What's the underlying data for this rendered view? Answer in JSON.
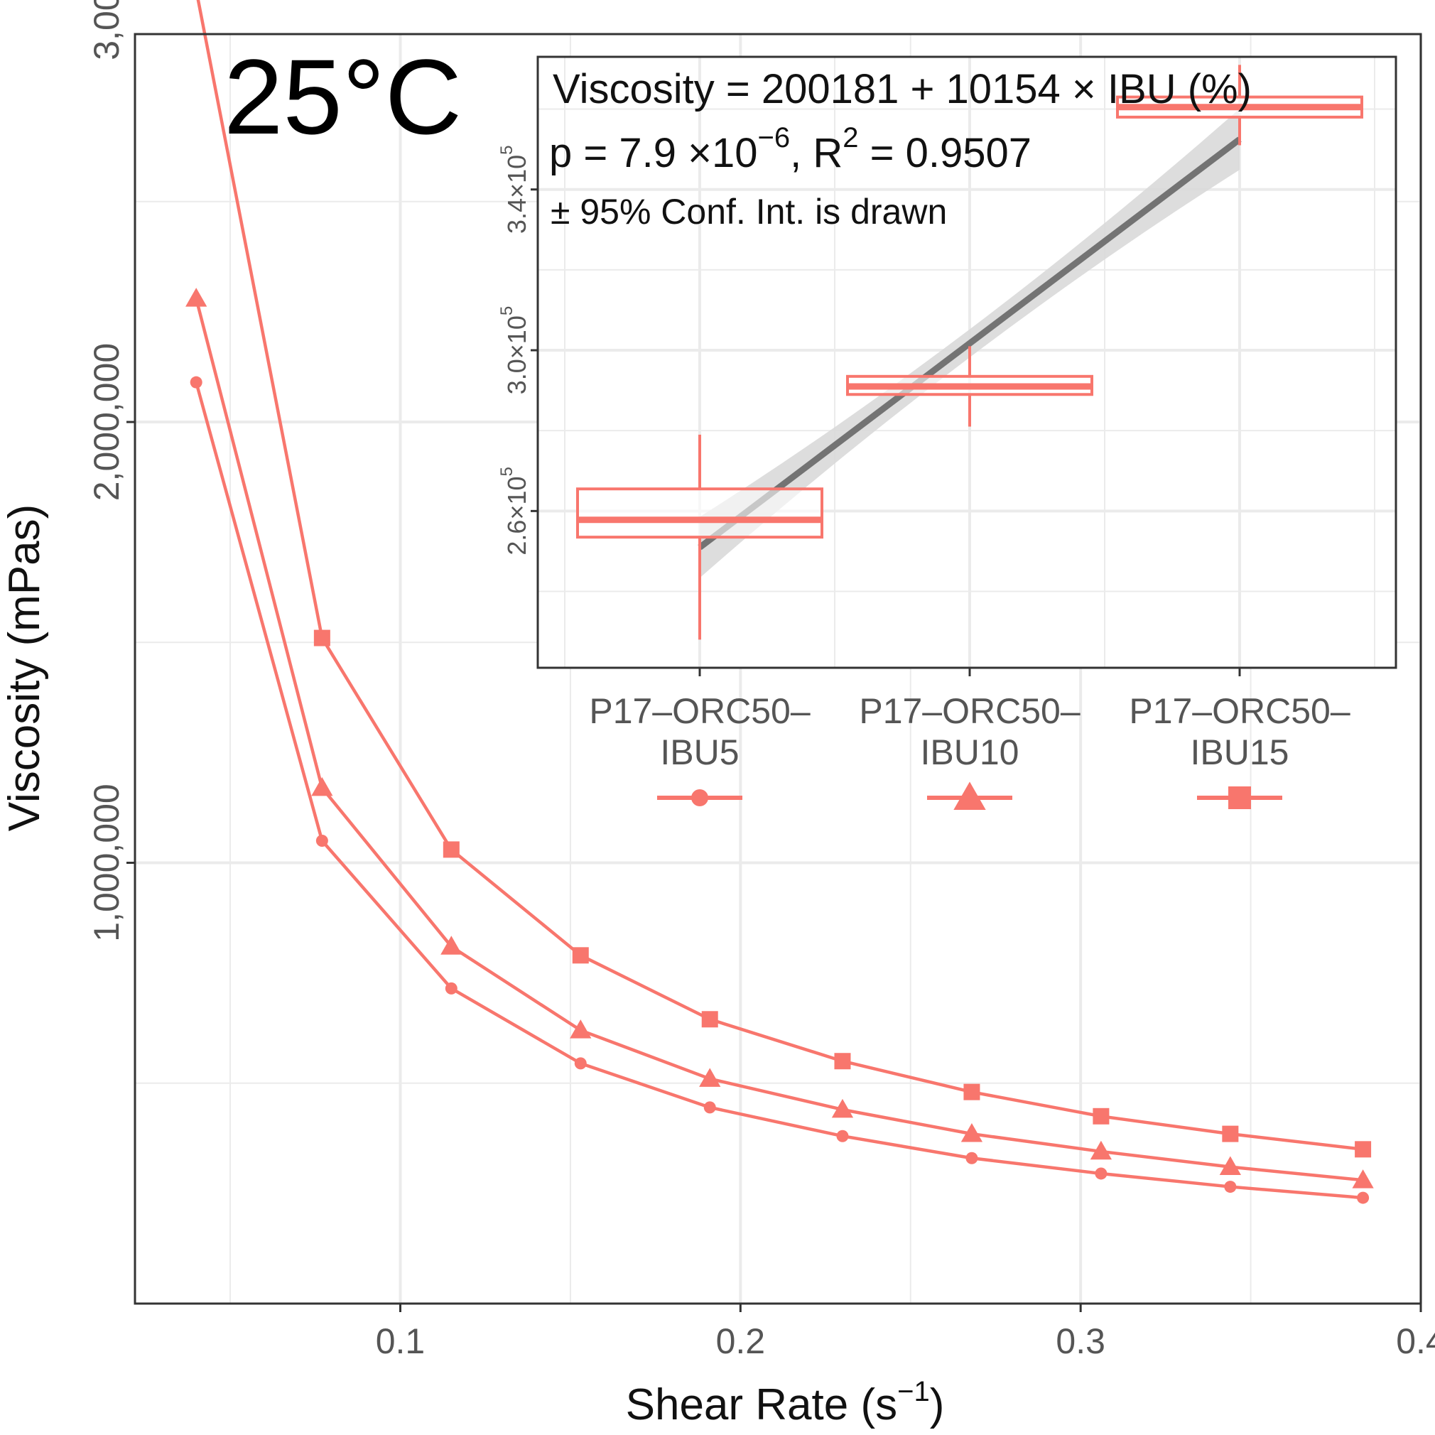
{
  "colors": {
    "series": "#F8766D",
    "grid": "#EBEBEB",
    "frame": "#333333",
    "fit_line": "#737373",
    "conf_band": "#D9D9D9"
  },
  "chart_data": [
    {
      "type": "line",
      "panel_label": "25°C",
      "xlabel_main": "Shear Rate (s",
      "xlabel_sup": "−1",
      "xlabel_end": ")",
      "ylabel": "Viscosity (mPas)",
      "xlim": [
        0.022,
        0.4
      ],
      "ylim": [
        0,
        2880000
      ],
      "xticks": [
        0.1,
        0.2,
        0.3,
        0.4
      ],
      "xtick_labels": [
        "0.1",
        "0.2",
        "0.3",
        "0.4"
      ],
      "yticks": [
        1000000,
        2000000,
        3000000
      ],
      "ytick_labels": [
        "1,000,000",
        "2,000,000",
        "3,000,000"
      ],
      "grid": true,
      "series": [
        {
          "name": "P17–ORC50–IBU5",
          "marker": "circle",
          "x": [
            0.04,
            0.077,
            0.115,
            0.153,
            0.191,
            0.23,
            0.268,
            0.306,
            0.344,
            0.383
          ],
          "values": [
            2090000,
            1050000,
            715000,
            545000,
            445000,
            380000,
            330000,
            295000,
            265000,
            240000
          ]
        },
        {
          "name": "P17–ORC50–IBU10",
          "marker": "triangle",
          "x": [
            0.04,
            0.077,
            0.115,
            0.153,
            0.191,
            0.23,
            0.268,
            0.306,
            0.344,
            0.383
          ],
          "values": [
            2280000,
            1170000,
            810000,
            620000,
            510000,
            440000,
            385000,
            345000,
            310000,
            280000
          ]
        },
        {
          "name": "P17–ORC50–IBU15",
          "marker": "square",
          "x": [
            0.04,
            0.077,
            0.115,
            0.153,
            0.191,
            0.23,
            0.268,
            0.306,
            0.344,
            0.383
          ],
          "values": [
            2980000,
            1510000,
            1030000,
            790000,
            645000,
            550000,
            480000,
            425000,
            385000,
            350000
          ]
        }
      ]
    },
    {
      "type": "box",
      "annotation_line1": "Viscosity = 200181 + 10154 × IBU (%)",
      "annotation_line2_main": "p = 7.9 ×10",
      "annotation_line2_exp": "−6",
      "annotation_line2_mid": ", R",
      "annotation_line2_exp2": "2",
      "annotation_line2_end": " = 0.9507",
      "annotation_line3": "± 95% Conf. Int. is drawn",
      "categories": [
        "P17–ORC50–IBU5",
        "P17–ORC50–IBU10",
        "P17–ORC50–IBU15"
      ],
      "category_lines": [
        [
          "P17–ORC50–",
          "IBU5"
        ],
        [
          "P17–ORC50–",
          "IBU10"
        ],
        [
          "P17–ORC50–",
          "IBU15"
        ]
      ],
      "ibu_percent": [
        5,
        10,
        15
      ],
      "ylim": [
        221000,
        373000
      ],
      "yticks": [
        260000,
        300000,
        340000
      ],
      "ytick_mantissa": [
        "2.6×10",
        "3.0×10",
        "3.4×10"
      ],
      "ytick_exp": "5",
      "boxes": [
        {
          "whisker_low": 228000,
          "q1": 253500,
          "median": 257800,
          "q3": 265500,
          "whisker_high": 279000
        },
        {
          "whisker_low": 281000,
          "q1": 289000,
          "median": 291000,
          "q3": 293500,
          "whisker_high": 301000
        },
        {
          "whisker_low": 351000,
          "q1": 358000,
          "median": 360500,
          "q3": 363000,
          "whisker_high": 371000
        }
      ],
      "fit": {
        "intercept": 200181,
        "slope": 10154,
        "ci_half_width_ends": 7600,
        "ci_half_width_mid": 3500
      },
      "legend_markers": [
        "circle",
        "triangle",
        "square"
      ]
    }
  ]
}
